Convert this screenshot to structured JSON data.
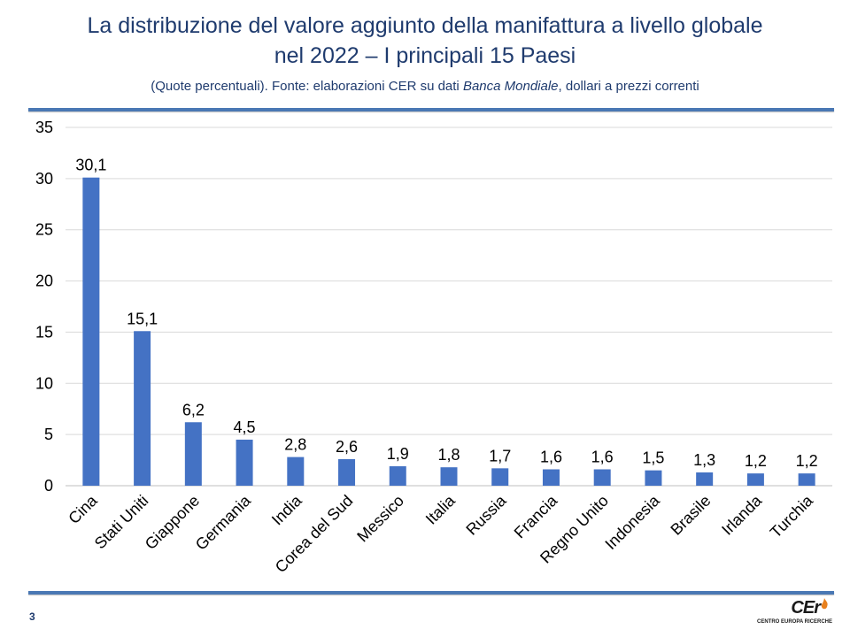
{
  "slide": {
    "title_line1": "La distribuzione del valore aggiunto della manifattura a livello globale",
    "title_line2": "nel 2022 – I principali 15 Paesi",
    "subtitle_prefix": "(Quote percentuali). Fonte: elaborazioni CER su dati ",
    "subtitle_source": "Banca Mondiale",
    "subtitle_suffix": ", dollari a prezzi correnti",
    "page_number": "3"
  },
  "logo": {
    "mark": "CEr",
    "text": "CENTRO EUROPA RICERCHE",
    "accent_color": "#e8811f"
  },
  "colors": {
    "title": "#1f3b6e",
    "bar": "#4472c4",
    "rule": "#4a78b4",
    "grid": "#d9d9d9"
  },
  "chart_data": {
    "type": "bar",
    "categories": [
      "Cina",
      "Stati Uniti",
      "Giappone",
      "Germania",
      "India",
      "Corea del Sud",
      "Messico",
      "Italia",
      "Russia",
      "Francia",
      "Regno Unito",
      "Indonesia",
      "Brasile",
      "Irlanda",
      "Turchia"
    ],
    "values": [
      30.1,
      15.1,
      6.2,
      4.5,
      2.8,
      2.6,
      1.9,
      1.8,
      1.7,
      1.6,
      1.6,
      1.5,
      1.3,
      1.2,
      1.2
    ],
    "data_labels": [
      "30,1",
      "15,1",
      "6,2",
      "4,5",
      "2,8",
      "2,6",
      "1,9",
      "1,8",
      "1,7",
      "1,6",
      "1,6",
      "1,5",
      "1,3",
      "1,2",
      "1,2"
    ],
    "ylim": [
      0,
      35
    ],
    "yticks": [
      "0",
      "5",
      "10",
      "15",
      "20",
      "25",
      "30",
      "35"
    ],
    "grid": true,
    "xlabel": "",
    "ylabel": ""
  }
}
